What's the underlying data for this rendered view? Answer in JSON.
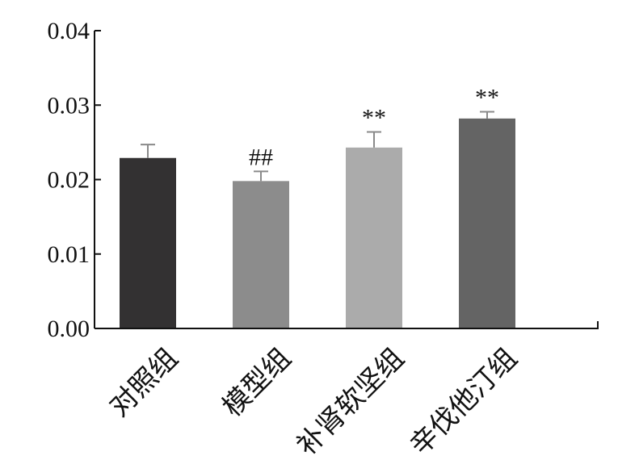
{
  "chart_data": {
    "type": "bar",
    "categories": [
      "对照组",
      "模型组",
      "补肾软坚组",
      "辛伐他汀组"
    ],
    "values": [
      0.0229,
      0.0198,
      0.0243,
      0.0282
    ],
    "errors": [
      0.0018,
      0.0013,
      0.0021,
      0.0009
    ],
    "significance": [
      "",
      "##",
      "**",
      "**"
    ],
    "colors": [
      "#333132",
      "#8c8c8c",
      "#ababab",
      "#646464"
    ],
    "ylim": [
      0,
      0.04
    ],
    "yticks": [
      "0.00",
      "0.01",
      "0.02",
      "0.03",
      "0.04"
    ],
    "grid": false,
    "title": "",
    "xlabel": "",
    "ylabel": ""
  }
}
